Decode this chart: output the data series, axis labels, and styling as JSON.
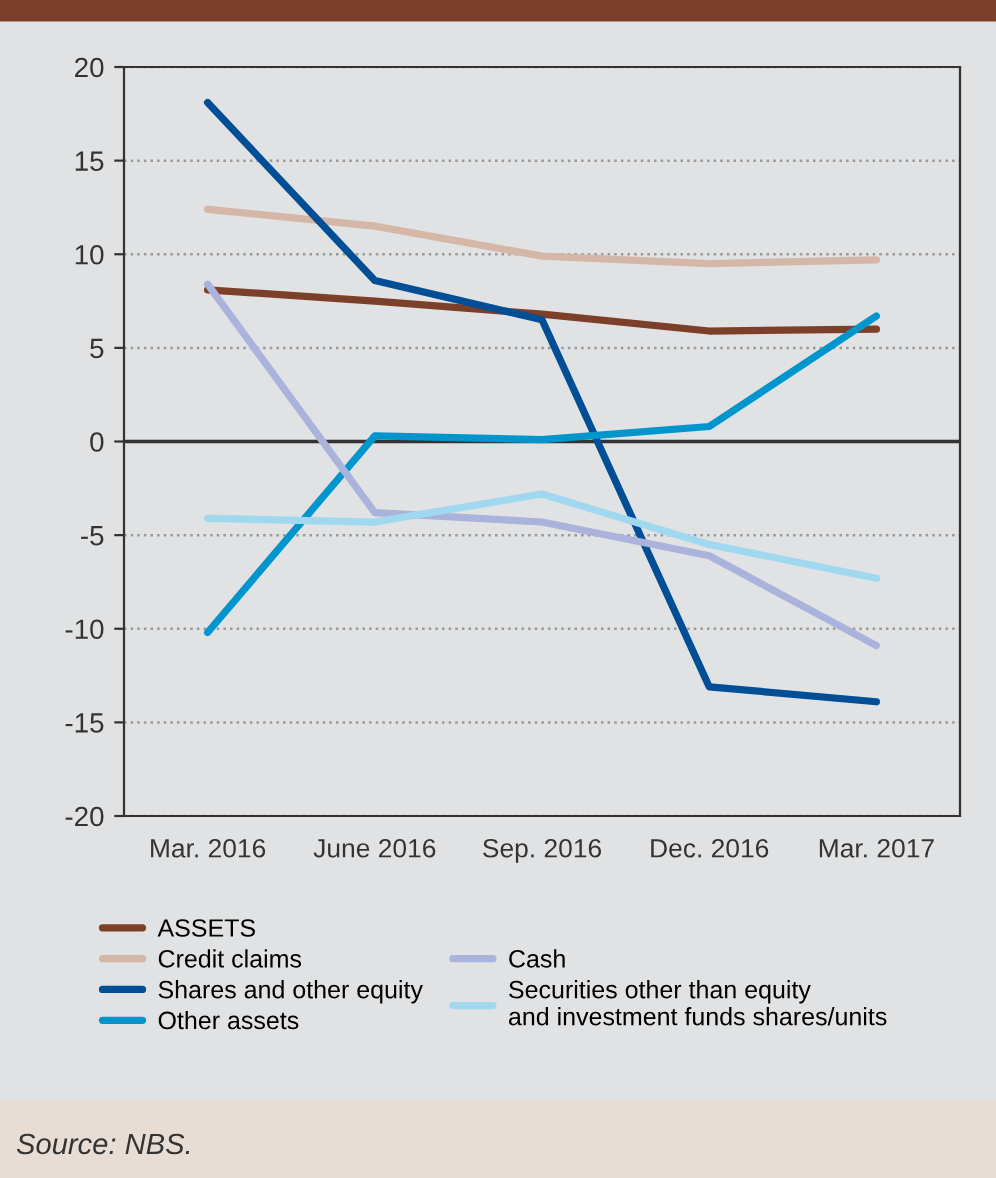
{
  "chart_data": {
    "type": "line",
    "categories": [
      "Mar. 2016",
      "June 2016",
      "Sep. 2016",
      "Dec. 2016",
      "Mar. 2017"
    ],
    "series": [
      {
        "name": "ASSETS",
        "color": "#7b3f2a",
        "values": [
          8.1,
          7.5,
          6.8,
          5.9,
          6.0
        ]
      },
      {
        "name": "Credit claims",
        "color": "#d4b7a6",
        "values": [
          12.4,
          11.5,
          9.9,
          9.5,
          9.7
        ]
      },
      {
        "name": "Shares and other equity",
        "color": "#004e96",
        "values": [
          18.1,
          8.6,
          6.5,
          -13.1,
          -13.9
        ]
      },
      {
        "name": "Other assets",
        "color": "#0095cc",
        "values": [
          -10.2,
          0.3,
          0.1,
          0.8,
          6.7
        ]
      },
      {
        "name": "Cash",
        "color": "#a9b3dc",
        "values": [
          8.4,
          -3.8,
          -4.3,
          -6.1,
          -10.9
        ]
      },
      {
        "name": "Securities other than equity\nand investment funds shares/units",
        "color": "#a0d8ef",
        "values": [
          -4.1,
          -4.3,
          -2.8,
          -5.5,
          -7.3
        ]
      }
    ],
    "ylim": [
      -20,
      20
    ],
    "yticks": [
      -20,
      -15,
      -10,
      -5,
      0,
      5,
      10,
      15,
      20
    ],
    "ref_lines": [
      {
        "axis": "y",
        "value": 0,
        "color": "#333333"
      }
    ],
    "grid": "y",
    "legend": "bottom",
    "marker": "none",
    "line_style": "solid",
    "annotations": [
      "Source: NBS."
    ]
  }
}
